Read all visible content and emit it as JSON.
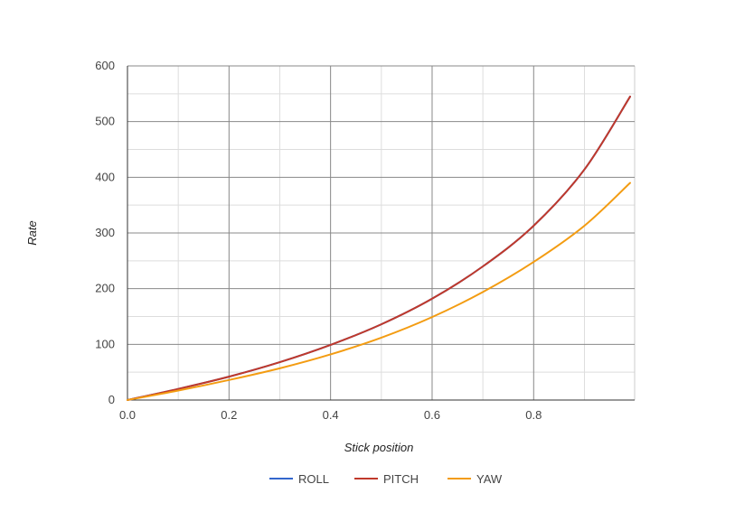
{
  "chart_data": {
    "type": "line",
    "title": "",
    "xlabel": "Stick position",
    "ylabel": "Rate",
    "xlim": [
      0,
      1
    ],
    "ylim": [
      0,
      600
    ],
    "grid": true,
    "legend_position": "bottom",
    "x_ticks": [
      0,
      0.2,
      0.4,
      0.6,
      0.8
    ],
    "x_tick_labels": [
      "0.0",
      "0.2",
      "0.4",
      "0.6",
      "0.8"
    ],
    "y_ticks": [
      0,
      100,
      200,
      300,
      400,
      500,
      600
    ],
    "y_tick_labels": [
      "0",
      "100",
      "200",
      "300",
      "400",
      "500",
      "600"
    ],
    "x": [
      0,
      0.1,
      0.2,
      0.3,
      0.4,
      0.5,
      0.6,
      0.7,
      0.8,
      0.9,
      0.99
    ],
    "series": [
      {
        "name": "ROLL",
        "color": "#3366cc",
        "values": [
          0,
          20,
          42,
          68,
          99,
          136,
          182,
          240,
          313,
          414,
          545
        ]
      },
      {
        "name": "PITCH",
        "color": "#c0392b",
        "values": [
          0,
          20,
          42,
          68,
          99,
          136,
          182,
          240,
          313,
          414,
          545
        ]
      },
      {
        "name": "YAW",
        "color": "#f39c12",
        "values": [
          0,
          17,
          36,
          57,
          82,
          112,
          149,
          194,
          248,
          313,
          390
        ]
      }
    ]
  }
}
